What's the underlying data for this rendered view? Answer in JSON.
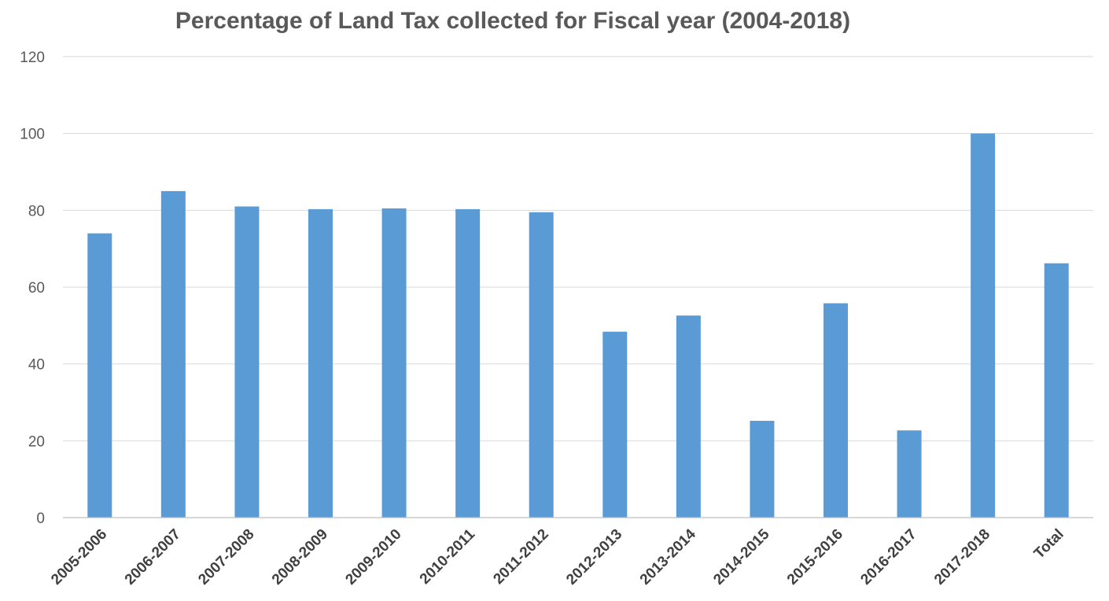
{
  "chart_data": {
    "type": "bar",
    "title": "Percentage of Land Tax collected for Fiscal year (2004-2018)",
    "xlabel": "",
    "ylabel": "",
    "ylim": [
      0,
      120
    ],
    "yticks": [
      0,
      20,
      40,
      60,
      80,
      100,
      120
    ],
    "grid": true,
    "legend": "none",
    "bar_color": "#5b9bd5",
    "categories": [
      "2005-2006",
      "2006-2007",
      "2007-2008",
      "2008-2009",
      "2009-2010",
      "2010-2011",
      "2011-2012",
      "2012-2013",
      "2013-2014",
      "2014-2015",
      "2015-2016",
      "2016-2017",
      "2017-2018",
      "Total"
    ],
    "values": [
      74,
      85,
      81,
      80.3,
      80.5,
      80.3,
      79.5,
      48.4,
      52.6,
      25.2,
      55.8,
      22.7,
      100,
      66.2
    ]
  }
}
